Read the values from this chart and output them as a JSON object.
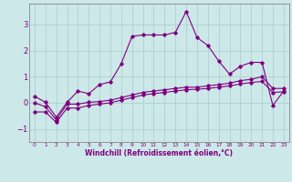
{
  "xlabel": "Windchill (Refroidissement éolien,°C)",
  "x_values": [
    0,
    1,
    2,
    3,
    4,
    5,
    6,
    7,
    8,
    9,
    10,
    11,
    12,
    13,
    14,
    15,
    16,
    17,
    18,
    19,
    20,
    21,
    22,
    23
  ],
  "line1_y": [
    0.25,
    0.02,
    -0.55,
    0.02,
    0.45,
    0.35,
    0.7,
    0.8,
    1.5,
    2.55,
    2.6,
    2.6,
    2.6,
    2.7,
    3.5,
    2.5,
    2.2,
    1.6,
    1.1,
    1.4,
    1.55,
    1.55,
    -0.1,
    0.45
  ],
  "line2_y": [
    0.0,
    -0.15,
    -0.65,
    -0.05,
    -0.05,
    0.02,
    0.05,
    0.1,
    0.2,
    0.3,
    0.4,
    0.45,
    0.5,
    0.55,
    0.6,
    0.6,
    0.65,
    0.7,
    0.75,
    0.85,
    0.9,
    1.0,
    0.55,
    0.55
  ],
  "line3_y": [
    -0.35,
    -0.35,
    -0.75,
    -0.2,
    -0.2,
    -0.1,
    -0.05,
    0.0,
    0.1,
    0.2,
    0.3,
    0.35,
    0.4,
    0.45,
    0.5,
    0.52,
    0.55,
    0.6,
    0.65,
    0.72,
    0.78,
    0.82,
    0.4,
    0.42
  ],
  "line_color": "#800080",
  "bg_color": "#cce8e8",
  "grid_color": "#aacccc",
  "ylim": [
    -1.5,
    3.8
  ],
  "yticks": [
    -1,
    0,
    1,
    2,
    3
  ],
  "xlim": [
    -0.5,
    23.5
  ]
}
